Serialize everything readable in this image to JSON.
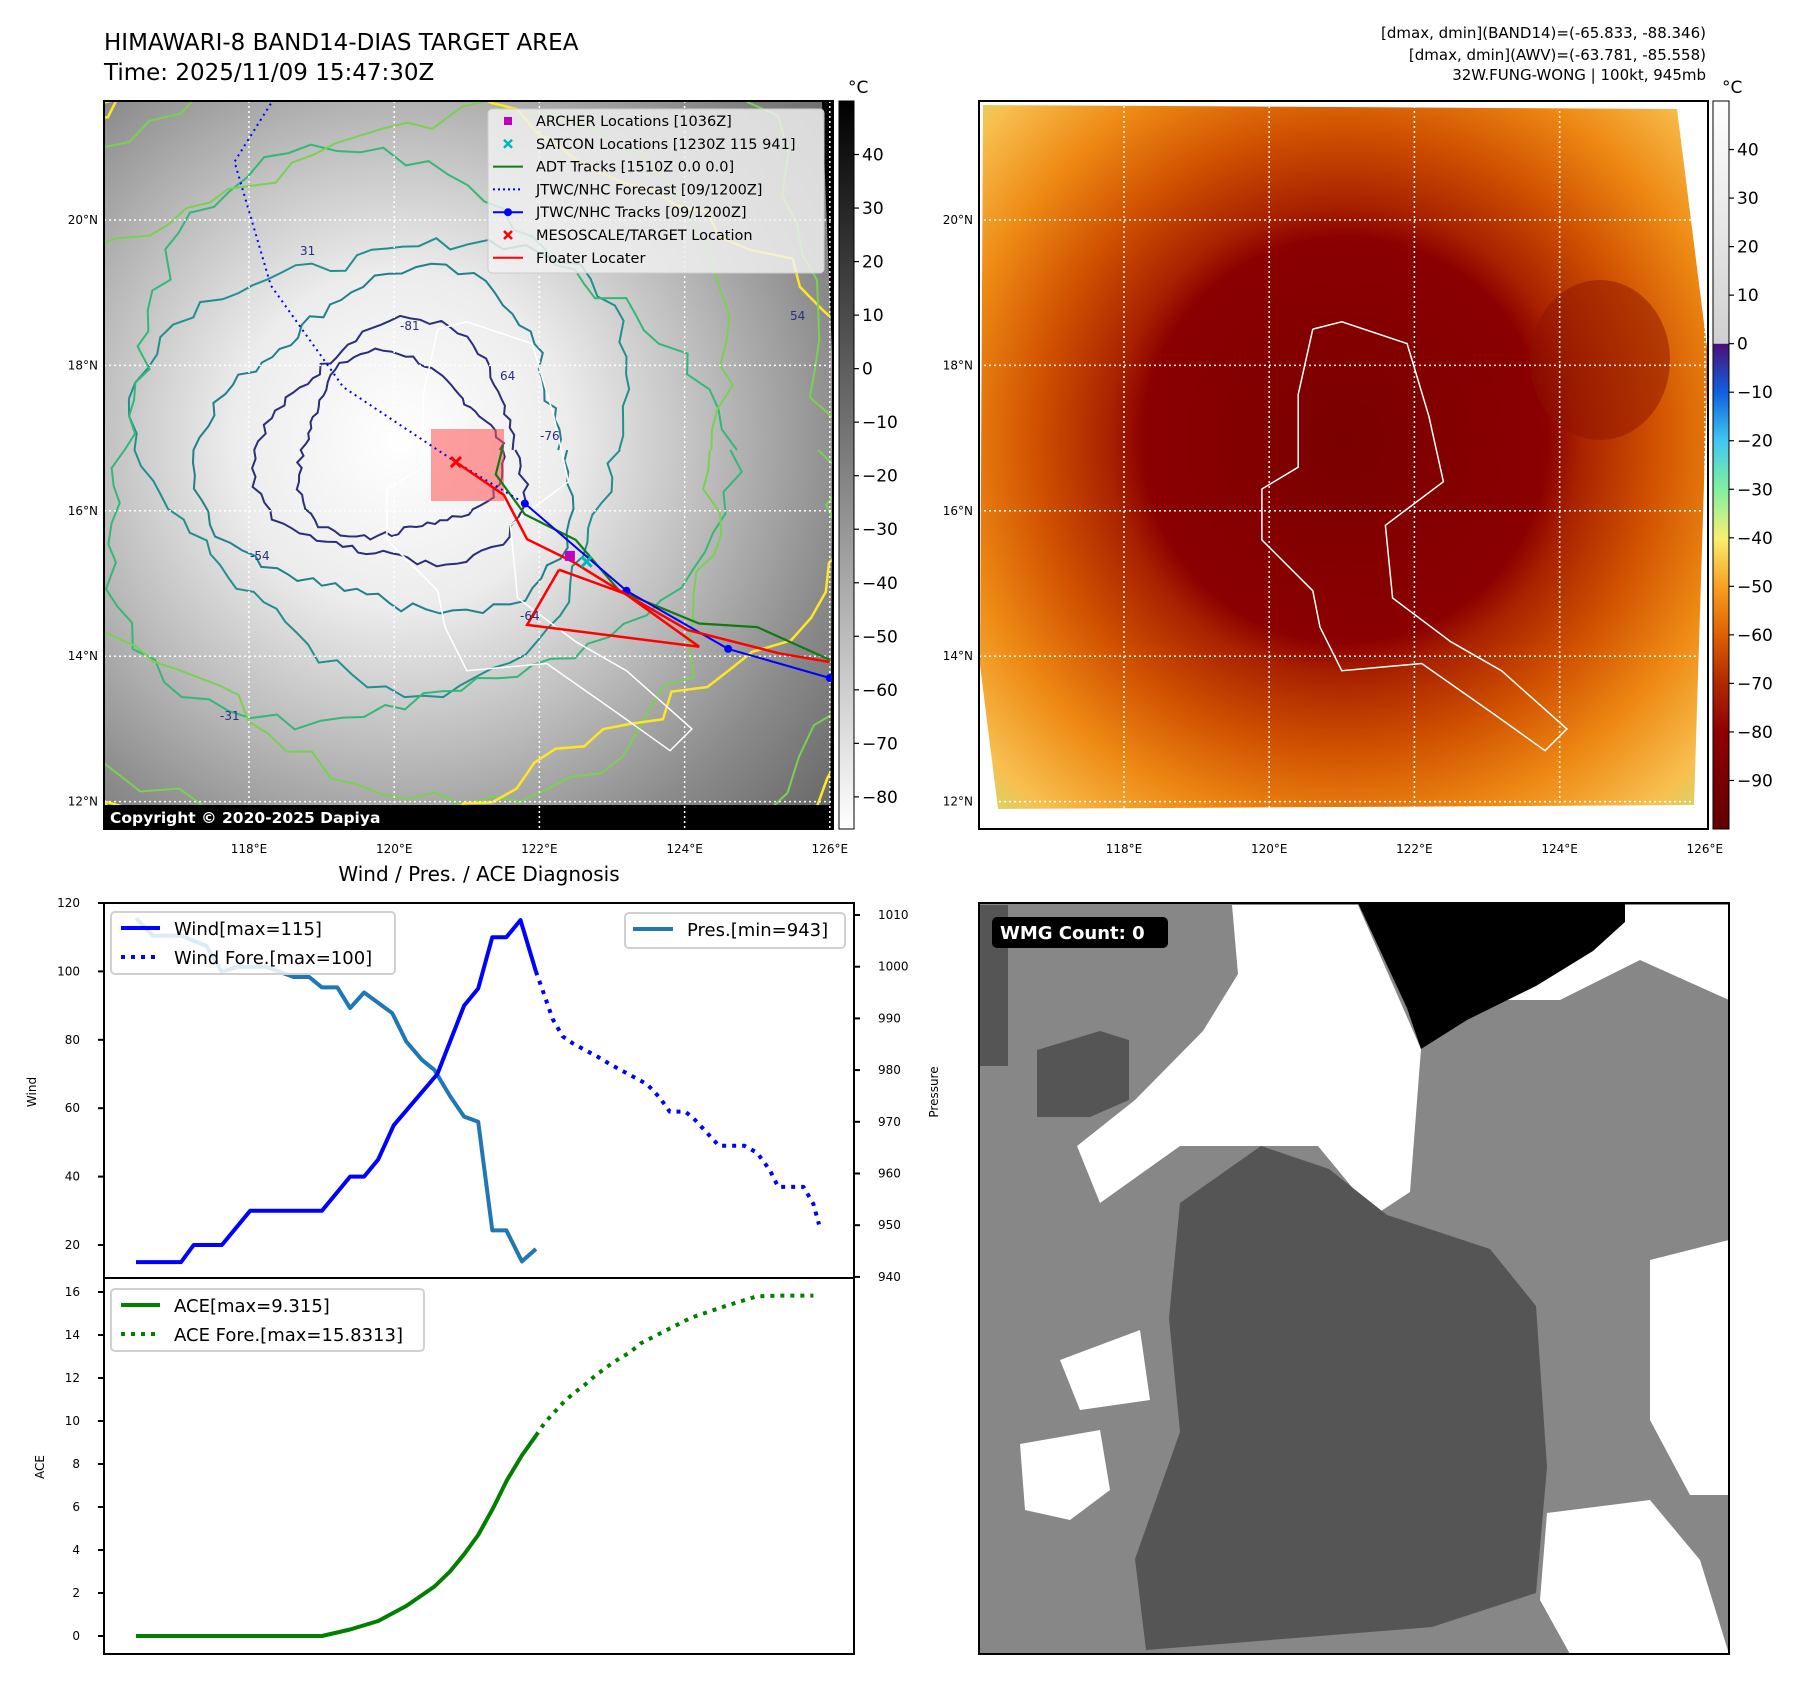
{
  "header": {
    "title": "HIMAWARI-8 BAND14-DIAS TARGET AREA",
    "time": "Time: 2025/11/09 15:47:30Z",
    "stats": [
      "[dmax, dmin](BAND14)=(-65.833, -88.346)",
      "[dmax, dmin](AWV)=(-63.781, -85.558)",
      "32W.FUNG-WONG | 100kt, 945mb"
    ]
  },
  "map_left": {
    "colorbar_unit": "°C",
    "colorbar_ticks": [
      40,
      30,
      20,
      10,
      0,
      -10,
      -20,
      -30,
      -40,
      -50,
      -60,
      -70,
      -80
    ],
    "colorbar_range": [
      50,
      -86
    ],
    "lat_labels": [
      "20°N",
      "18°N",
      "16°N",
      "14°N",
      "12°N"
    ],
    "lat_values": [
      20,
      18,
      16,
      14,
      12
    ],
    "lon_labels": [
      "118°E",
      "120°E",
      "122°E",
      "124°E",
      "126°E"
    ],
    "lon_values": [
      118,
      120,
      122,
      124,
      126
    ],
    "copyright": "Copyright © 2020-2025 Dapiya",
    "contour_labels": [
      "-81",
      "-76",
      "-64",
      "-54",
      "-31",
      "31",
      "54",
      "64"
    ],
    "legend": [
      {
        "label": "ARCHER Locations [1036Z]",
        "kind": "square",
        "color": "#c000c0"
      },
      {
        "label": "SATCON Locations [1230Z 115 941]",
        "kind": "x",
        "color": "#00b8b8"
      },
      {
        "label": "ADT Tracks [1510Z 0.0 0.0]",
        "kind": "line",
        "color": "#117a11"
      },
      {
        "label": "JTWC/NHC Forecast [09/1200Z]",
        "kind": "dotted",
        "color": "#0000ff"
      },
      {
        "label": "JTWC/NHC Tracks [09/1200Z]",
        "kind": "line-dot",
        "color": "#0000ff"
      },
      {
        "label": "MESOSCALE/TARGET Location",
        "kind": "x",
        "color": "#ff0000"
      },
      {
        "label": "Floater Locater",
        "kind": "line",
        "color": "#ff0000"
      }
    ],
    "tracks": {
      "jtwc_forecast": [
        [
          118.3,
          21.6
        ],
        [
          117.8,
          20.8
        ],
        [
          118.3,
          19.1
        ],
        [
          119.3,
          17.7
        ],
        [
          120.85,
          16.67
        ],
        [
          121.8,
          16.1
        ]
      ],
      "jtwc_track": [
        [
          121.8,
          16.1
        ],
        [
          123.2,
          14.9
        ],
        [
          124.6,
          14.1
        ],
        [
          126.0,
          13.7
        ]
      ],
      "adt": [
        [
          121.5,
          16.9
        ],
        [
          121.4,
          16.5
        ],
        [
          121.8,
          15.95
        ],
        [
          122.5,
          15.6
        ],
        [
          123.1,
          14.9
        ],
        [
          124.2,
          14.45
        ],
        [
          125.0,
          14.4
        ],
        [
          126.0,
          13.95
        ]
      ],
      "floater": [
        [
          120.85,
          16.67
        ],
        [
          121.51,
          16.22
        ],
        [
          121.83,
          15.61
        ],
        [
          122.46,
          15.3
        ],
        [
          123.09,
          14.91
        ],
        [
          124.04,
          14.36
        ],
        [
          125.3,
          14.04
        ],
        [
          126.0,
          13.92
        ]
      ],
      "floater_box": [
        [
          122.27,
          15.19
        ],
        [
          121.83,
          14.43
        ],
        [
          124.2,
          14.13
        ],
        [
          123.18,
          14.86
        ],
        [
          122.27,
          15.19
        ]
      ],
      "archer": [
        122.42,
        15.38
      ],
      "satcon": [
        122.65,
        15.3
      ],
      "target": [
        120.85,
        16.67
      ]
    }
  },
  "map_right": {
    "colorbar_unit": "°C",
    "colorbar_ticks": [
      40,
      30,
      20,
      10,
      0,
      -10,
      -20,
      -30,
      -40,
      -50,
      -60,
      -70,
      -80,
      -90
    ],
    "colorbar_range": [
      50,
      -100
    ],
    "lat_labels": [
      "20°N",
      "18°N",
      "16°N",
      "14°N",
      "12°N"
    ],
    "lon_labels": [
      "118°E",
      "120°E",
      "122°E",
      "124°E",
      "126°E"
    ]
  },
  "wmg": {
    "label": "WMG Count: 0"
  },
  "colors": {
    "wind": "#0000ff",
    "pressure": "#1f77b4",
    "ace": "#007f00",
    "floater": "#ff0000"
  },
  "chart_data": [
    {
      "type": "line",
      "title": "Wind / Pres. / ACE Diagnosis",
      "xlabel": "",
      "ylabel": "Wind",
      "y2label": "Pressure",
      "xlim": [
        0,
        48.5
      ],
      "ylim": [
        10,
        120
      ],
      "y2lim": [
        940,
        1012
      ],
      "yticks": [
        20,
        40,
        60,
        80,
        100,
        120
      ],
      "y2ticks": [
        940,
        950,
        960,
        970,
        980,
        990,
        1000,
        1010
      ],
      "series": [
        {
          "name": "Wind[max=115]",
          "axis": "left",
          "style": "solid",
          "color": "#0000ff",
          "points": [
            [
              0,
              15
            ],
            [
              3.2,
              15
            ],
            [
              4.1,
              20
            ],
            [
              6.1,
              20
            ],
            [
              8.1,
              30
            ],
            [
              13.2,
              30
            ],
            [
              15.2,
              40
            ],
            [
              16.2,
              40
            ],
            [
              17.2,
              45
            ],
            [
              18.3,
              55
            ],
            [
              21.4,
              70
            ],
            [
              23.3,
              90
            ],
            [
              24.3,
              95
            ],
            [
              25.3,
              110
            ],
            [
              26.3,
              110
            ],
            [
              27.3,
              115
            ],
            [
              28.4,
              100
            ]
          ]
        },
        {
          "name": "Wind Fore.[max=100]",
          "axis": "left",
          "style": "dotted",
          "color": "#0000ff",
          "points": [
            [
              28.4,
              100
            ],
            [
              29,
              93
            ],
            [
              29.6,
              86
            ],
            [
              30.3,
              81
            ],
            [
              31,
              79
            ],
            [
              31.9,
              77
            ],
            [
              32.8,
              75
            ],
            [
              33.6,
              73
            ],
            [
              34.5,
              71
            ],
            [
              35.4,
              69
            ],
            [
              36.3,
              67
            ],
            [
              37.2,
              63
            ],
            [
              37.9,
              59
            ],
            [
              39,
              59
            ],
            [
              39.6,
              57
            ],
            [
              40.5,
              53
            ],
            [
              41.4,
              49
            ],
            [
              43.2,
              49
            ],
            [
              44.1,
              47
            ],
            [
              45,
              42
            ],
            [
              45.6,
              37
            ],
            [
              47.4,
              37
            ],
            [
              48.1,
              32
            ],
            [
              48.5,
              26
            ]
          ]
        },
        {
          "name": "Pres.[min=943]",
          "axis": "right",
          "style": "solid",
          "color": "#1f77b4",
          "points": [
            [
              0,
              1009.4
            ],
            [
              1.2,
              1006
            ],
            [
              3.2,
              1006
            ],
            [
              5,
              1004
            ],
            [
              6.1,
              999
            ],
            [
              7.2,
              1000
            ],
            [
              9.2,
              1000
            ],
            [
              11.2,
              998
            ],
            [
              12.3,
              998
            ],
            [
              13.2,
              996
            ],
            [
              14.3,
              996
            ],
            [
              15.2,
              992
            ],
            [
              16.2,
              995
            ],
            [
              18.2,
              991
            ],
            [
              19.2,
              985.5
            ],
            [
              20.3,
              982
            ],
            [
              21.2,
              980
            ],
            [
              22.3,
              975
            ],
            [
              23.3,
              971
            ],
            [
              24.3,
              970
            ],
            [
              25.3,
              949
            ],
            [
              26.3,
              949
            ],
            [
              27.4,
              943
            ],
            [
              28.4,
              945.4
            ]
          ]
        }
      ]
    },
    {
      "type": "line",
      "xlabel": "",
      "ylabel": "ACE",
      "xlim": [
        0,
        48.5
      ],
      "ylim": [
        -0.8,
        17
      ],
      "yticks": [
        0,
        2,
        4,
        6,
        8,
        10,
        12,
        14,
        16
      ],
      "series": [
        {
          "name": "ACE[max=9.315]",
          "style": "solid",
          "color": "#007f00",
          "points": [
            [
              0,
              0
            ],
            [
              13.2,
              0
            ],
            [
              15.2,
              0.3
            ],
            [
              17.2,
              0.7
            ],
            [
              19.2,
              1.4
            ],
            [
              21.2,
              2.3
            ],
            [
              22.3,
              3.0
            ],
            [
              23.3,
              3.8
            ],
            [
              24.3,
              4.7
            ],
            [
              25.4,
              6.0
            ],
            [
              26.3,
              7.2
            ],
            [
              27.4,
              8.4
            ],
            [
              28.4,
              9.315
            ]
          ]
        },
        {
          "name": "ACE Fore.[max=15.8313]",
          "style": "dotted",
          "color": "#007f00",
          "points": [
            [
              28.4,
              9.315
            ],
            [
              29,
              9.9
            ],
            [
              29.7,
              10.4
            ],
            [
              30.4,
              10.9
            ],
            [
              31.1,
              11.3
            ],
            [
              31.9,
              11.7
            ],
            [
              32.6,
              12.1
            ],
            [
              33.4,
              12.5
            ],
            [
              34.3,
              12.9
            ],
            [
              35.1,
              13.2
            ],
            [
              35.8,
              13.6
            ],
            [
              36.7,
              13.9
            ],
            [
              37.6,
              14.2
            ],
            [
              38.5,
              14.5
            ],
            [
              39.4,
              14.8
            ],
            [
              40.3,
              15.0
            ],
            [
              41.2,
              15.2
            ],
            [
              42.1,
              15.4
            ],
            [
              43.1,
              15.6
            ],
            [
              44.1,
              15.8
            ],
            [
              45.9,
              15.8313
            ],
            [
              48.1,
              15.8313
            ]
          ]
        }
      ]
    }
  ]
}
